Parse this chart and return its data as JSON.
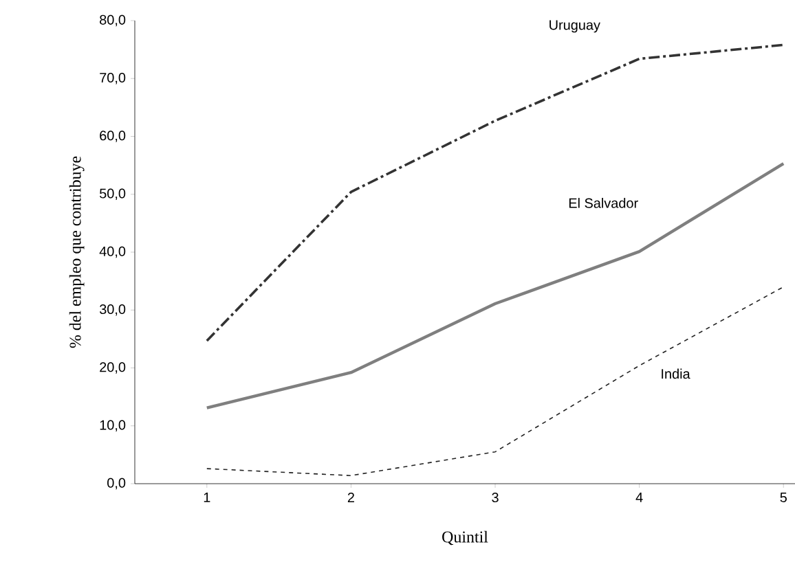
{
  "chart_data": {
    "type": "line",
    "xlabel": "Quintil",
    "ylabel": "% del empleo que contribuye",
    "categories": [
      "1",
      "2",
      "3",
      "4",
      "5"
    ],
    "series": [
      {
        "name": "Uruguay",
        "color": "#333333",
        "line_style": "dashdot",
        "values": [
          24.7,
          50.4,
          62.7,
          73.4,
          75.8
        ]
      },
      {
        "name": "El Salvador",
        "color": "#7f7f7f",
        "line_style": "solid",
        "values": [
          13.1,
          19.2,
          31.1,
          40.1,
          55.3
        ]
      },
      {
        "name": "India",
        "color": "#222222",
        "line_style": "dashed",
        "values": [
          2.6,
          1.4,
          5.5,
          20.4,
          34.0
        ]
      }
    ],
    "ylim": [
      0,
      80
    ],
    "yticks": [
      {
        "value": 0,
        "label": "0,0"
      },
      {
        "value": 10,
        "label": "10,0"
      },
      {
        "value": 20,
        "label": "20,0"
      },
      {
        "value": 30,
        "label": "30,0"
      },
      {
        "value": 40,
        "label": "40,0"
      },
      {
        "value": 50,
        "label": "50,0"
      },
      {
        "value": 60,
        "label": "60,0"
      },
      {
        "value": 70,
        "label": "70,0"
      },
      {
        "value": 80,
        "label": "80,0"
      }
    ],
    "grid": false,
    "legend": false,
    "marker": "none"
  }
}
